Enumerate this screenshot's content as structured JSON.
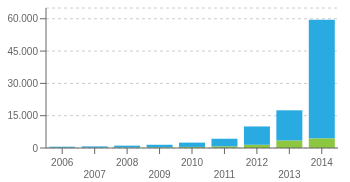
{
  "chart_data": {
    "type": "bar",
    "stacked": true,
    "grid": true,
    "categories": [
      "2006",
      "2007",
      "2008",
      "2009",
      "2010",
      "2011",
      "2012",
      "2013",
      "2014"
    ],
    "series": [
      {
        "color": "#8dc63f",
        "values": [
          100,
          150,
          200,
          300,
          500,
          800,
          1500,
          3500,
          4500
        ]
      },
      {
        "color": "#29abe2",
        "values": [
          500,
          600,
          900,
          1200,
          2000,
          3500,
          8500,
          14000,
          55000
        ]
      }
    ],
    "ylim": [
      0,
      65000
    ],
    "yticks": [
      0,
      {
        "value": 15000,
        "label": "15.000"
      },
      {
        "value": 30000,
        "label": "30.000"
      },
      {
        "value": 45000,
        "label": "45.000"
      },
      {
        "value": 60000,
        "label": "60.000"
      }
    ]
  }
}
